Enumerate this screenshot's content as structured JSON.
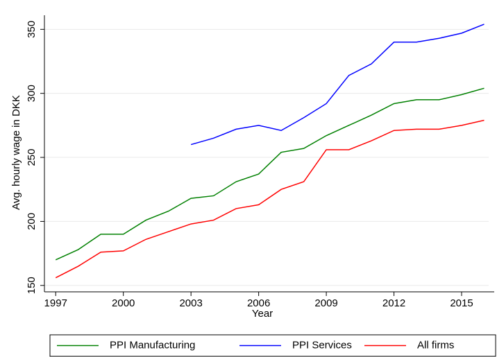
{
  "chart_data": {
    "type": "line",
    "x_label": "Year",
    "y_label": "Avg. hourly wage in DKK",
    "x": [
      1997,
      1998,
      1999,
      2000,
      2001,
      2002,
      2003,
      2004,
      2005,
      2006,
      2007,
      2008,
      2009,
      2010,
      2011,
      2012,
      2013,
      2014,
      2015,
      2016
    ],
    "series": [
      {
        "name": "PPI Manufacturing",
        "color": "#008000",
        "values": [
          170,
          178,
          190,
          190,
          201,
          208,
          218,
          220,
          231,
          237,
          254,
          257,
          267,
          275,
          283,
          292,
          295,
          295,
          299,
          304
        ]
      },
      {
        "name": "PPI Services",
        "color": "#0000ff",
        "values": [
          null,
          null,
          null,
          null,
          null,
          null,
          260,
          265,
          272,
          275,
          271,
          281,
          292,
          314,
          323,
          340,
          340,
          343,
          347,
          354
        ]
      },
      {
        "name": "All firms",
        "color": "#ff0000",
        "values": [
          156,
          165,
          176,
          177,
          186,
          192,
          198,
          201,
          210,
          213,
          225,
          231,
          256,
          256,
          263,
          271,
          272,
          272,
          275,
          279
        ]
      }
    ],
    "xlim": [
      1996.5,
      2016.2
    ],
    "xticks": [
      1997,
      2000,
      2003,
      2006,
      2009,
      2012,
      2015
    ],
    "ylim": [
      145,
      361
    ],
    "yticks": [
      150,
      200,
      250,
      300,
      350
    ],
    "grid": true,
    "legend": "bottom"
  }
}
